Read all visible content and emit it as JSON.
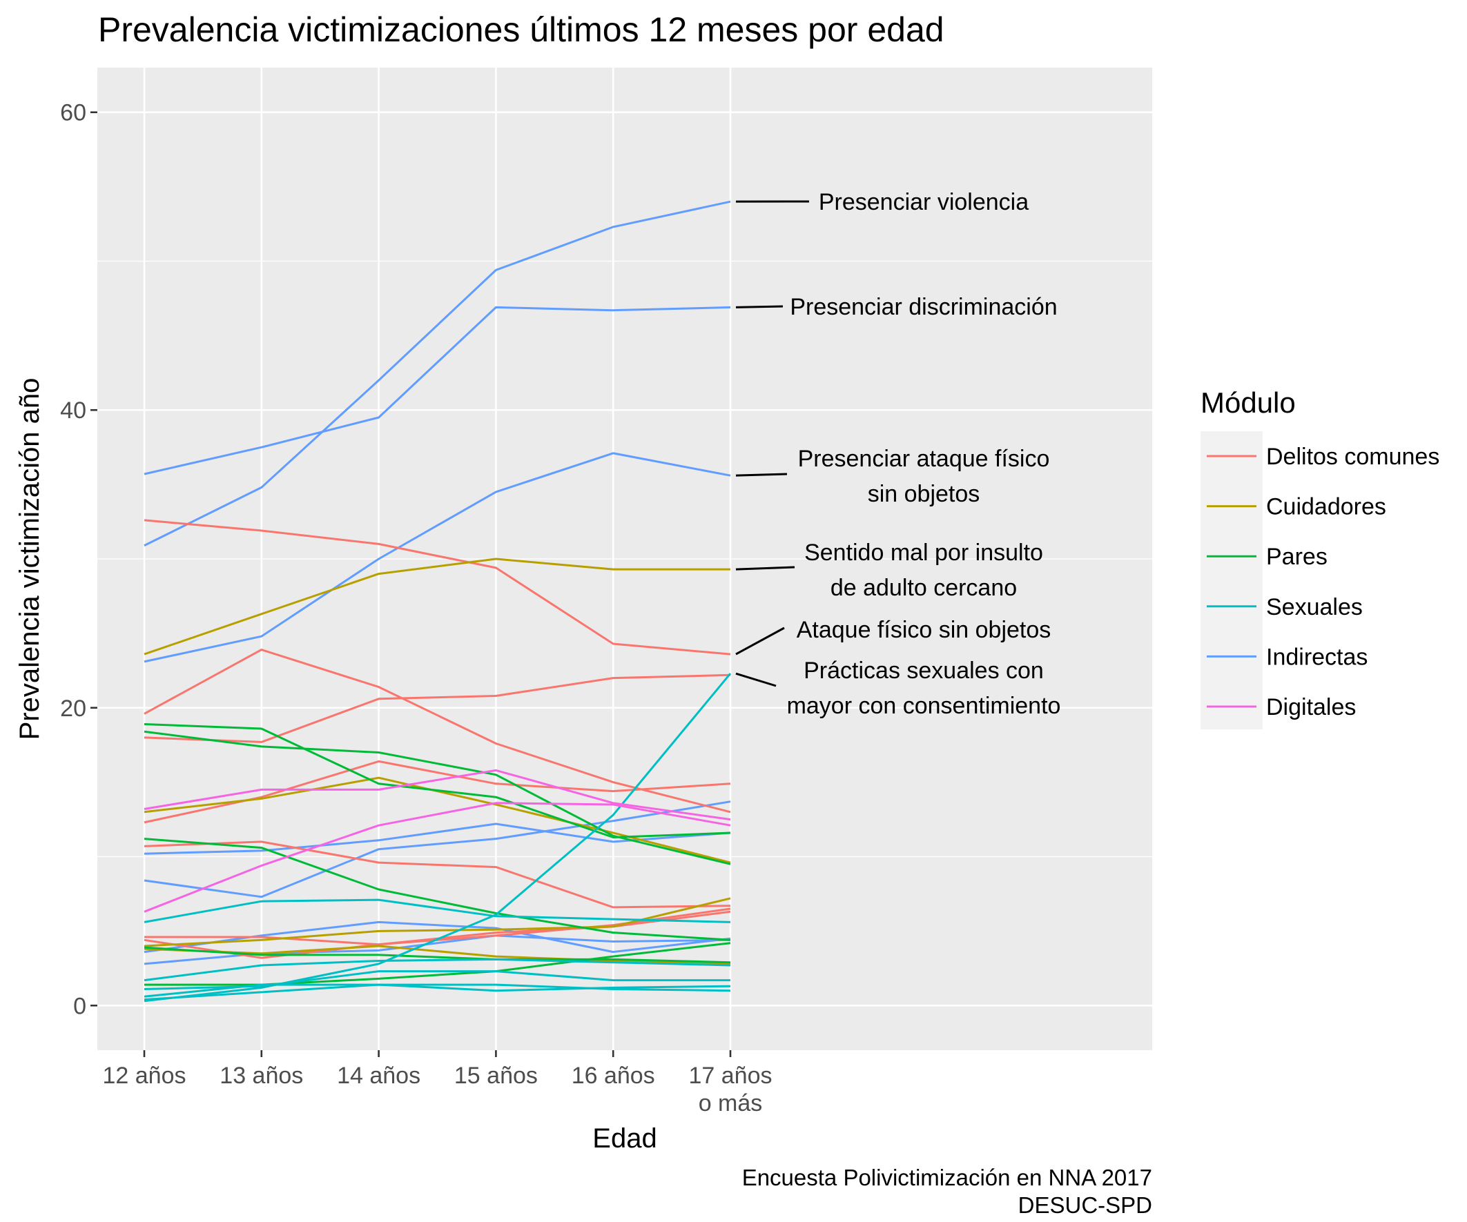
{
  "chart_data": {
    "type": "line",
    "title": "Prevalencia victimizaciones últimos 12 meses por edad",
    "xlabel": "Edad",
    "ylabel": "Prevalencia victimización año",
    "categories": [
      "12 años",
      "13 años",
      "14 años",
      "15 años",
      "16 años",
      "17 años\no más"
    ],
    "y_ticks": [
      0,
      20,
      40,
      60
    ],
    "ylim": [
      -3,
      63
    ],
    "legend_title": "Módulo",
    "legend_position": "right",
    "modules": [
      {
        "name": "Delitos comunes",
        "color": "#F8766D"
      },
      {
        "name": "Cuidadores",
        "color": "#B79F00"
      },
      {
        "name": "Pares",
        "color": "#00BA38"
      },
      {
        "name": "Sexuales",
        "color": "#00BFC4"
      },
      {
        "name": "Indirectas",
        "color": "#619CFF"
      },
      {
        "name": "Digitales",
        "color": "#F564E3"
      }
    ],
    "series": [
      {
        "module": "Indirectas",
        "values": [
          30.9,
          34.8,
          42.0,
          49.4,
          52.3,
          54.0
        ]
      },
      {
        "module": "Indirectas",
        "values": [
          35.7,
          37.5,
          39.5,
          46.9,
          46.7,
          46.9
        ]
      },
      {
        "module": "Indirectas",
        "values": [
          23.1,
          24.8,
          30.0,
          34.5,
          37.1,
          35.6
        ]
      },
      {
        "module": "Indirectas",
        "values": [
          10.2,
          10.4,
          11.1,
          12.2,
          11.0,
          11.6
        ]
      },
      {
        "module": "Indirectas",
        "values": [
          8.4,
          7.3,
          10.5,
          11.2,
          12.4,
          13.7
        ]
      },
      {
        "module": "Indirectas",
        "values": [
          3.6,
          4.7,
          5.6,
          5.2,
          3.6,
          4.5
        ]
      },
      {
        "module": "Indirectas",
        "values": [
          2.8,
          3.5,
          3.7,
          4.7,
          4.3,
          4.4
        ]
      },
      {
        "module": "Delitos comunes",
        "values": [
          32.6,
          31.9,
          31.0,
          29.4,
          24.3,
          23.6
        ]
      },
      {
        "module": "Delitos comunes",
        "values": [
          19.6,
          23.9,
          21.4,
          17.6,
          15.0,
          13.0
        ]
      },
      {
        "module": "Delitos comunes",
        "values": [
          18.0,
          17.7,
          20.6,
          20.8,
          22.0,
          22.2
        ]
      },
      {
        "module": "Delitos comunes",
        "values": [
          12.3,
          14.0,
          16.4,
          14.9,
          14.4,
          14.9
        ]
      },
      {
        "module": "Delitos comunes",
        "values": [
          10.7,
          11.0,
          9.6,
          9.3,
          6.6,
          6.7
        ]
      },
      {
        "module": "Delitos comunes",
        "values": [
          4.6,
          4.6,
          4.1,
          4.7,
          5.4,
          6.5
        ]
      },
      {
        "module": "Delitos comunes",
        "values": [
          4.4,
          3.2,
          4.1,
          4.9,
          5.3,
          6.3
        ]
      },
      {
        "module": "Cuidadores",
        "values": [
          23.6,
          26.3,
          29.0,
          30.0,
          29.3,
          29.3
        ]
      },
      {
        "module": "Cuidadores",
        "values": [
          13.0,
          13.9,
          15.3,
          13.5,
          11.6,
          9.6
        ]
      },
      {
        "module": "Cuidadores",
        "values": [
          4.0,
          4.4,
          5.0,
          5.1,
          5.3,
          7.2
        ]
      },
      {
        "module": "Cuidadores",
        "values": [
          3.8,
          3.5,
          4.0,
          3.3,
          3.0,
          2.8
        ]
      },
      {
        "module": "Pares",
        "values": [
          18.9,
          18.6,
          14.9,
          14.0,
          11.3,
          11.6
        ]
      },
      {
        "module": "Pares",
        "values": [
          18.4,
          17.4,
          17.0,
          15.5,
          11.4,
          9.5
        ]
      },
      {
        "module": "Pares",
        "values": [
          11.2,
          10.6,
          7.8,
          6.2,
          4.9,
          4.4
        ]
      },
      {
        "module": "Pares",
        "values": [
          3.9,
          3.4,
          3.4,
          3.1,
          3.1,
          2.9
        ]
      },
      {
        "module": "Pares",
        "values": [
          1.4,
          1.4,
          1.8,
          2.3,
          3.3,
          4.2
        ]
      },
      {
        "module": "Sexuales",
        "values": [
          0.3,
          1.2,
          2.8,
          6.1,
          12.8,
          22.3
        ]
      },
      {
        "module": "Sexuales",
        "values": [
          5.6,
          7.0,
          7.1,
          6.0,
          5.8,
          5.6
        ]
      },
      {
        "module": "Sexuales",
        "values": [
          1.7,
          2.7,
          3.0,
          3.1,
          2.9,
          2.7
        ]
      },
      {
        "module": "Sexuales",
        "values": [
          1.1,
          1.3,
          2.3,
          2.3,
          1.7,
          1.7
        ]
      },
      {
        "module": "Sexuales",
        "values": [
          0.6,
          1.4,
          1.4,
          1.0,
          1.2,
          1.3
        ]
      },
      {
        "module": "Sexuales",
        "values": [
          0.4,
          0.9,
          1.4,
          1.4,
          1.1,
          1.0
        ]
      },
      {
        "module": "Digitales",
        "values": [
          13.2,
          14.5,
          14.5,
          15.8,
          13.6,
          12.5
        ]
      },
      {
        "module": "Digitales",
        "values": [
          6.3,
          9.4,
          12.1,
          13.6,
          13.5,
          12.1
        ]
      }
    ],
    "annotations": [
      {
        "lines": [
          "Presenciar violencia"
        ],
        "target_value": 54.0
      },
      {
        "lines": [
          "Presenciar discriminación"
        ],
        "target_value": 46.9
      },
      {
        "lines": [
          "Presenciar ataque físico",
          "sin objetos"
        ],
        "target_value": 35.6
      },
      {
        "lines": [
          "Sentido mal por insulto",
          "de adulto cercano"
        ],
        "target_value": 29.3
      },
      {
        "lines": [
          "Ataque físico sin objetos"
        ],
        "target_value": 23.6
      },
      {
        "lines": [
          "Prácticas sexuales con",
          "mayor con consentimiento"
        ],
        "target_value": 22.3
      }
    ],
    "caption": [
      "Encuesta Polivictimización en NNA 2017",
      "DESUC-SPD"
    ]
  }
}
